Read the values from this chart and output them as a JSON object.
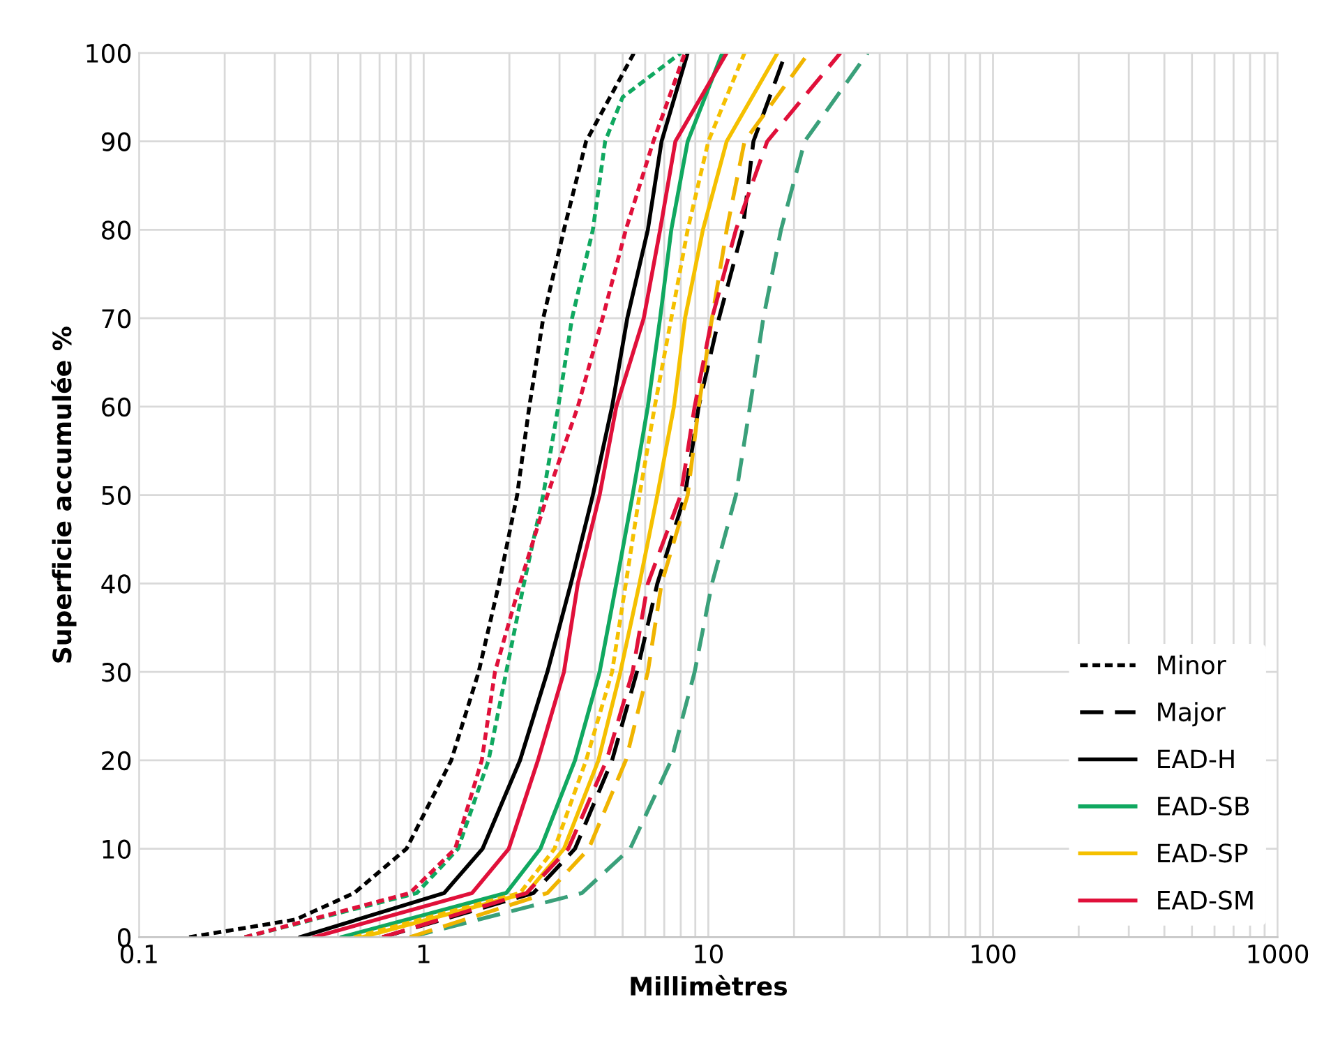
{
  "chart_data": {
    "type": "line",
    "xlabel": "Millimètres",
    "ylabel": "Superficie accumulée %",
    "log": "x",
    "xlim": [
      0.1,
      1000
    ],
    "xticks": [
      0.1,
      1,
      10,
      100,
      1000
    ],
    "ylim": [
      0,
      100
    ],
    "yticks": [
      0,
      10,
      20,
      30,
      40,
      50,
      60,
      70,
      80,
      90,
      100
    ],
    "grid": true,
    "legend": "bottom right",
    "marker": "none",
    "series": [
      {
        "name": "Minor",
        "color": "#000000",
        "line_style": "dotted",
        "x": [
          0.15,
          0.355,
          0.57,
          0.87,
          1.25,
          1.56,
          1.84,
          2.13,
          2.35,
          2.63,
          3.11,
          3.72,
          5.48
        ],
        "values": [
          0,
          2,
          5,
          10,
          20,
          30,
          40,
          50,
          60,
          70,
          80,
          90,
          100
        ]
      },
      {
        "name": "Major",
        "color": "#000000",
        "line_style": "dashed",
        "x": [
          0.716,
          2.43,
          3.4,
          4.59,
          5.61,
          6.62,
          8.28,
          9.25,
          10.9,
          13.2,
          14.4,
          18.7
        ],
        "values": [
          0,
          5,
          10,
          20,
          30,
          40,
          50,
          60,
          70,
          80,
          90,
          100
        ]
      },
      {
        "name": "EAD-H",
        "color": "#000000",
        "line_style": "solid",
        "x": [
          0.367,
          1.18,
          1.61,
          2.18,
          2.72,
          3.29,
          3.93,
          4.59,
          5.19,
          6.13,
          6.85,
          8.46
        ],
        "values": [
          0,
          5,
          10,
          20,
          30,
          40,
          50,
          60,
          70,
          80,
          90,
          100
        ]
      },
      {
        "name": "EAD-SB",
        "color": "#10a860",
        "line_style": "solid",
        "x": [
          0.513,
          1.95,
          2.57,
          3.4,
          4.15,
          4.75,
          5.42,
          6.13,
          6.77,
          7.41,
          8.46,
          11.2
        ],
        "values": [
          0,
          5,
          10,
          20,
          30,
          40,
          50,
          60,
          70,
          80,
          90,
          100
        ]
      },
      {
        "name": "EAD-SP",
        "color": "#f5c000",
        "line_style": "solid",
        "x": [
          0.607,
          2.3,
          3.11,
          4.11,
          4.91,
          5.73,
          6.62,
          7.57,
          8.28,
          9.57,
          11.6,
          17.5
        ],
        "values": [
          0,
          5,
          10,
          20,
          30,
          40,
          50,
          60,
          70,
          80,
          90,
          100
        ]
      },
      {
        "name": "EAD-SM",
        "color": "#e0103a",
        "line_style": "solid",
        "x": [
          0.411,
          1.48,
          1.99,
          2.52,
          3.11,
          3.48,
          4.15,
          4.75,
          5.93,
          6.77,
          7.66,
          11.6
        ],
        "values": [
          0,
          5,
          10,
          20,
          30,
          40,
          50,
          60,
          70,
          80,
          90,
          100
        ]
      },
      {
        "color": "#10a860",
        "line_style": "dotted",
        "x": [
          0.235,
          0.946,
          1.32,
          1.69,
          1.95,
          2.25,
          2.63,
          2.97,
          3.32,
          3.93,
          4.34,
          5.0,
          8.0
        ],
        "values": [
          0,
          5,
          10,
          20,
          30,
          40,
          50,
          60,
          70,
          80,
          90,
          95,
          100
        ]
      },
      {
        "color": "#e0103a",
        "line_style": "dotted",
        "x": [
          0.235,
          0.895,
          1.29,
          1.6,
          1.78,
          2.18,
          2.72,
          3.48,
          4.25,
          5.13,
          6.41,
          8.28
        ],
        "values": [
          0,
          5,
          10,
          20,
          30,
          40,
          50,
          60,
          70,
          80,
          90,
          100
        ]
      },
      {
        "color": "#f5c000",
        "line_style": "dotted",
        "x": [
          0.57,
          2.18,
          2.88,
          3.72,
          4.59,
          5.13,
          5.73,
          6.48,
          7.41,
          8.46,
          10.0,
          13.4
        ],
        "values": [
          0,
          5,
          10,
          20,
          30,
          40,
          50,
          60,
          70,
          80,
          90,
          100
        ]
      },
      {
        "color": "#3aa07a",
        "line_style": "dashed",
        "x": [
          0.895,
          3.6,
          5.31,
          7.41,
          8.95,
          10.3,
          12.5,
          14.0,
          15.6,
          18.0,
          21.8,
          36.3
        ],
        "values": [
          0,
          5,
          10,
          20,
          30,
          40,
          50,
          60,
          70,
          80,
          90,
          100
        ]
      },
      {
        "color": "#f0b400",
        "line_style": "dashed",
        "x": [
          0.895,
          2.72,
          3.8,
          5.13,
          6.13,
          6.85,
          8.46,
          9.25,
          10.3,
          11.6,
          13.4,
          22.5
        ],
        "values": [
          0,
          5,
          10,
          20,
          30,
          40,
          50,
          60,
          70,
          80,
          90,
          100
        ]
      },
      {
        "color": "#e0103a",
        "line_style": "dashed",
        "x": [
          0.716,
          2.3,
          3.22,
          4.39,
          5.42,
          6.13,
          8.0,
          8.95,
          10.3,
          12.5,
          16.1,
          29.1
        ],
        "values": [
          0,
          5,
          10,
          20,
          30,
          40,
          50,
          60,
          70,
          80,
          90,
          100
        ]
      }
    ]
  }
}
